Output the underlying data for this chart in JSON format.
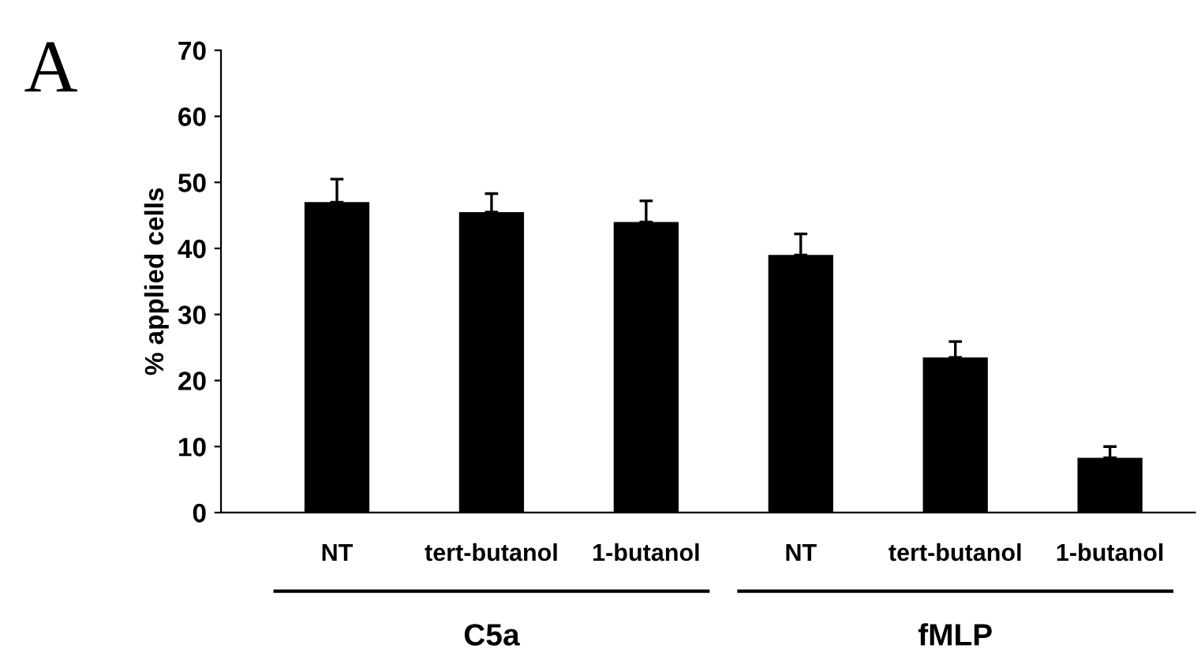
{
  "chart_data": {
    "type": "bar",
    "ylabel": "% applied cells",
    "categories": [
      "NT",
      "tert-butanol",
      "1-butanol",
      "NT",
      "tert-butanol",
      "1-butanol"
    ],
    "values": [
      47,
      45.5,
      44,
      39,
      23.5,
      8.3
    ],
    "errors": [
      [
        47,
        50.5
      ],
      [
        45.5,
        48.3
      ],
      [
        44,
        47.2
      ],
      [
        39,
        42.2
      ],
      [
        23.5,
        25.9
      ],
      [
        8.3,
        10
      ]
    ],
    "color": "#000000",
    "ylim": [
      0,
      70
    ],
    "yticks": [
      0,
      10,
      20,
      30,
      40,
      50,
      60,
      70
    ],
    "grid": false,
    "annotations": [
      "A",
      "C5a",
      "fMLP"
    ]
  }
}
